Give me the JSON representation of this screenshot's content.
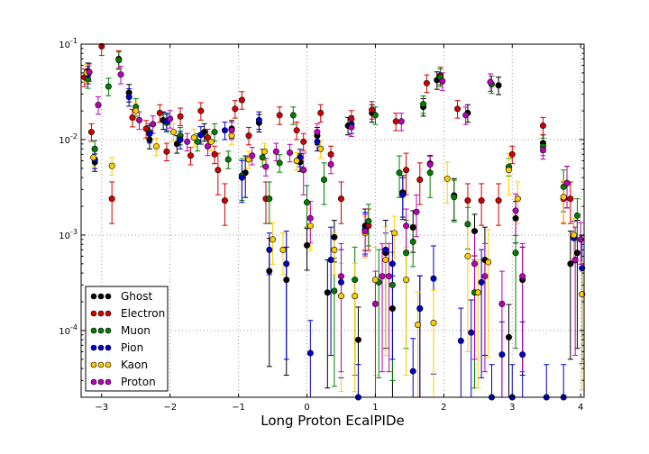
{
  "chart_data": {
    "type": "scatter",
    "title": "",
    "xlabel": "Long Proton EcalPIDe",
    "ylabel": "",
    "xlim": [
      -3.3,
      4.05
    ],
    "ylim": [
      2e-05,
      0.1
    ],
    "yscale": "log",
    "grid": true,
    "legend_position": "bottom-left",
    "x_ticks": [
      {
        "value": -3,
        "label": "−3"
      },
      {
        "value": -2,
        "label": "−2"
      },
      {
        "value": -1,
        "label": "−1"
      },
      {
        "value": 0,
        "label": "0"
      },
      {
        "value": 1,
        "label": "1"
      },
      {
        "value": 2,
        "label": "2"
      },
      {
        "value": 3,
        "label": "3"
      },
      {
        "value": 4,
        "label": "4"
      }
    ],
    "y_ticks": [
      {
        "value": 0.0001,
        "base": "10",
        "exp": "-4"
      },
      {
        "value": 0.001,
        "base": "10",
        "exp": "-3"
      },
      {
        "value": 0.01,
        "base": "10",
        "exp": "-2"
      },
      {
        "value": 0.1,
        "base": "10",
        "exp": "-1"
      }
    ],
    "series": [
      {
        "name": "Ghost",
        "color": "#000000",
        "points": [
          [
            -3.2,
            0.052
          ],
          [
            -3.1,
            0.0058
          ],
          [
            -2.6,
            0.031
          ],
          [
            -2.3,
            0.01
          ],
          [
            -2.1,
            0.016
          ],
          [
            -1.9,
            0.009
          ],
          [
            -1.5,
            0.012
          ],
          [
            -1.1,
            0.013
          ],
          [
            -0.9,
            0.0045
          ],
          [
            -0.7,
            0.015
          ],
          [
            -0.55,
            0.00042
          ],
          [
            -0.3,
            0.00034
          ],
          [
            -0.1,
            0.0058
          ],
          [
            0.0,
            0.00078
          ],
          [
            0.15,
            0.011
          ],
          [
            0.3,
            0.00025
          ],
          [
            0.4,
            0.00095
          ],
          [
            0.6,
            0.014
          ],
          [
            0.75,
            8e-05
          ],
          [
            0.85,
            0.00125
          ],
          [
            0.95,
            0.019
          ],
          [
            1.15,
            0.00065
          ],
          [
            1.25,
            0.00017
          ],
          [
            1.4,
            0.0028
          ],
          [
            1.55,
            0.0012
          ],
          [
            1.65,
            0.00017
          ],
          [
            1.7,
            0.022
          ],
          [
            1.8,
            0.0056
          ],
          [
            1.9,
            0.042
          ],
          [
            2.15,
            0.0026
          ],
          [
            2.35,
            0.019
          ],
          [
            2.45,
            0.0011
          ],
          [
            2.6,
            0.00055
          ],
          [
            2.8,
            0.037
          ],
          [
            2.95,
            8.5e-05
          ],
          [
            3.05,
            0.0015
          ],
          [
            3.15,
            0.00034
          ],
          [
            3.45,
            0.0092
          ],
          [
            3.8,
            0.0035
          ],
          [
            3.85,
            0.0005
          ],
          [
            3.95,
            0.00065
          ]
        ]
      },
      {
        "name": "Electron",
        "color": "#d40000",
        "points": [
          [
            -3.25,
            0.045
          ],
          [
            -3.15,
            0.012
          ],
          [
            -3.0,
            0.095
          ],
          [
            -2.85,
            0.0024
          ],
          [
            -2.75,
            0.07
          ],
          [
            -2.55,
            0.017
          ],
          [
            -2.35,
            0.013
          ],
          [
            -2.15,
            0.019
          ],
          [
            -2.05,
            0.0075
          ],
          [
            -1.85,
            0.0175
          ],
          [
            -1.7,
            0.0068
          ],
          [
            -1.55,
            0.02
          ],
          [
            -1.45,
            0.0105
          ],
          [
            -1.35,
            0.007
          ],
          [
            -1.3,
            0.0048
          ],
          [
            -1.2,
            0.0023
          ],
          [
            -1.05,
            0.021
          ],
          [
            -0.95,
            0.026
          ],
          [
            -0.85,
            0.011
          ],
          [
            -0.6,
            0.0024
          ],
          [
            -0.4,
            0.018
          ],
          [
            -0.15,
            0.0125
          ],
          [
            -0.05,
            0.0095
          ],
          [
            0.2,
            0.019
          ],
          [
            0.35,
            0.007
          ],
          [
            0.5,
            0.0024
          ],
          [
            0.65,
            0.0165
          ],
          [
            0.9,
            0.00125
          ],
          [
            0.95,
            0.0205
          ],
          [
            1.3,
            0.0155
          ],
          [
            1.45,
            0.0048
          ],
          [
            1.65,
            0.0038
          ],
          [
            1.75,
            0.039
          ],
          [
            1.95,
            0.047
          ],
          [
            2.2,
            0.021
          ],
          [
            2.35,
            0.0023
          ],
          [
            2.55,
            0.0023
          ],
          [
            2.8,
            0.0023
          ],
          [
            3.0,
            0.007
          ],
          [
            3.45,
            0.014
          ],
          [
            3.75,
            0.0024
          ],
          [
            3.85,
            0.0024
          ]
        ]
      },
      {
        "name": "Muon",
        "color": "#007f00",
        "points": [
          [
            -3.2,
            0.043
          ],
          [
            -3.1,
            0.008
          ],
          [
            -2.9,
            0.036
          ],
          [
            -2.75,
            0.068
          ],
          [
            -2.5,
            0.022
          ],
          [
            -2.3,
            0.012
          ],
          [
            -2.05,
            0.015
          ],
          [
            -1.85,
            0.011
          ],
          [
            -1.6,
            0.0095
          ],
          [
            -1.35,
            0.012
          ],
          [
            -1.15,
            0.0062
          ],
          [
            -0.95,
            0.0042
          ],
          [
            -0.65,
            0.0065
          ],
          [
            -0.55,
            0.0024
          ],
          [
            -0.4,
            0.0057
          ],
          [
            -0.2,
            0.018
          ],
          [
            0.0,
            0.0022
          ],
          [
            0.25,
            0.0038
          ],
          [
            0.4,
            0.00026
          ],
          [
            0.7,
            0.00034
          ],
          [
            0.9,
            0.0014
          ],
          [
            1.0,
            0.018
          ],
          [
            1.05,
            0.00032
          ],
          [
            1.25,
            0.0003
          ],
          [
            1.35,
            0.0045
          ],
          [
            1.45,
            0.00065
          ],
          [
            1.55,
            0.00085
          ],
          [
            1.7,
            0.0235
          ],
          [
            1.8,
            0.0045
          ],
          [
            1.95,
            0.045
          ],
          [
            2.15,
            0.0025
          ],
          [
            2.35,
            0.0013
          ],
          [
            2.45,
            0.00025
          ],
          [
            2.7,
            0.038
          ],
          [
            2.95,
            0.0052
          ],
          [
            3.05,
            0.00065
          ],
          [
            3.45,
            0.0085
          ],
          [
            3.75,
            0.0032
          ],
          [
            3.95,
            0.0016
          ]
        ]
      },
      {
        "name": "Pion",
        "color": "#0000cc",
        "points": [
          [
            -3.2,
            0.048
          ],
          [
            -3.1,
            0.0062
          ],
          [
            -2.6,
            0.028
          ],
          [
            -2.3,
            0.0115
          ],
          [
            -2.05,
            0.0155
          ],
          [
            -1.85,
            0.01
          ],
          [
            -1.55,
            0.0112
          ],
          [
            -1.2,
            0.0125
          ],
          [
            -0.95,
            0.004
          ],
          [
            -0.7,
            0.016
          ],
          [
            -0.55,
            0.0007
          ],
          [
            -0.3,
            0.0005
          ],
          [
            -0.1,
            0.0065
          ],
          [
            0.05,
            5.8e-05
          ],
          [
            0.15,
            0.0095
          ],
          [
            0.35,
            0.00055
          ],
          [
            0.5,
            0.00032
          ],
          [
            0.65,
            0.0145
          ],
          [
            0.75,
            2e-05
          ],
          [
            0.85,
            0.00115
          ],
          [
            1.15,
            0.0007
          ],
          [
            1.25,
            0.0005
          ],
          [
            1.4,
            0.00265
          ],
          [
            1.55,
            3.75e-05
          ],
          [
            1.65,
            0.00017
          ],
          [
            1.85,
            0.00035
          ],
          [
            2.25,
            7.8e-05
          ],
          [
            2.4,
            9.5e-05
          ],
          [
            2.55,
            0.00032
          ],
          [
            2.7,
            2e-05
          ],
          [
            2.85,
            5.6e-05
          ],
          [
            3.0,
            2e-05
          ],
          [
            3.15,
            5.6e-05
          ],
          [
            3.5,
            2e-05
          ],
          [
            3.75,
            2e-05
          ],
          [
            3.9,
            0.00093
          ],
          [
            4.02,
            0.00045
          ]
        ]
      },
      {
        "name": "Kaon",
        "color": "#ffcc00",
        "points": [
          [
            -3.22,
            0.05
          ],
          [
            -3.12,
            0.0065
          ],
          [
            -2.85,
            0.0053
          ],
          [
            -2.5,
            0.02
          ],
          [
            -2.2,
            0.0085
          ],
          [
            -1.95,
            0.012
          ],
          [
            -1.65,
            0.0105
          ],
          [
            -1.4,
            0.0095
          ],
          [
            -1.1,
            0.011
          ],
          [
            -0.85,
            0.0062
          ],
          [
            -0.62,
            0.0075
          ],
          [
            -0.5,
            0.0009
          ],
          [
            -0.35,
            0.0007
          ],
          [
            -0.15,
            0.006
          ],
          [
            0.05,
            0.00125
          ],
          [
            0.2,
            0.008
          ],
          [
            0.4,
            0.0007
          ],
          [
            0.5,
            0.00023
          ],
          [
            0.7,
            0.00023
          ],
          [
            0.85,
            0.00105
          ],
          [
            1.0,
            0.00034
          ],
          [
            1.15,
            0.00055
          ],
          [
            1.28,
            0.00105
          ],
          [
            1.45,
            0.00034
          ],
          [
            1.62,
            0.000115
          ],
          [
            1.85,
            0.00012
          ],
          [
            2.05,
            0.0039
          ],
          [
            2.35,
            0.0006
          ],
          [
            2.5,
            0.00025
          ],
          [
            2.65,
            0.00052
          ],
          [
            2.95,
            0.0048
          ],
          [
            3.08,
            0.0024
          ],
          [
            3.75,
            0.0025
          ],
          [
            3.9,
            0.001
          ],
          [
            4.02,
            0.00024
          ]
        ]
      },
      {
        "name": "Proton",
        "color": "#bb00bb",
        "points": [
          [
            -3.18,
            0.051
          ],
          [
            -3.05,
            0.023
          ],
          [
            -2.72,
            0.048
          ],
          [
            -2.45,
            0.016
          ],
          [
            -2.25,
            0.0145
          ],
          [
            -2.0,
            0.0165
          ],
          [
            -1.75,
            0.0095
          ],
          [
            -1.45,
            0.0085
          ],
          [
            -1.1,
            0.0125
          ],
          [
            -0.8,
            0.0068
          ],
          [
            -0.6,
            0.0052
          ],
          [
            -0.45,
            0.0075
          ],
          [
            -0.25,
            0.0073
          ],
          [
            -0.05,
            0.0048
          ],
          [
            0.05,
            0.0015
          ],
          [
            0.15,
            0.012
          ],
          [
            0.35,
            0.0055
          ],
          [
            0.5,
            0.00037
          ],
          [
            0.65,
            0.0135
          ],
          [
            0.85,
            0.0011
          ],
          [
            1.0,
            0.00019
          ],
          [
            1.1,
            0.00037
          ],
          [
            1.2,
            0.00037
          ],
          [
            1.38,
            0.0155
          ],
          [
            1.45,
            0.00125
          ],
          [
            1.6,
            0.00175
          ],
          [
            1.8,
            0.0055
          ],
          [
            1.98,
            0.041
          ],
          [
            2.32,
            0.018
          ],
          [
            2.45,
            0.0005
          ],
          [
            2.6,
            0.00037
          ],
          [
            2.68,
            0.04
          ],
          [
            2.85,
            0.00019
          ],
          [
            3.05,
            0.0018
          ],
          [
            3.15,
            0.00037
          ],
          [
            3.45,
            0.0078
          ],
          [
            3.8,
            0.0035
          ],
          [
            3.92,
            0.00055
          ],
          [
            4.0,
            0.0009
          ]
        ]
      }
    ]
  }
}
